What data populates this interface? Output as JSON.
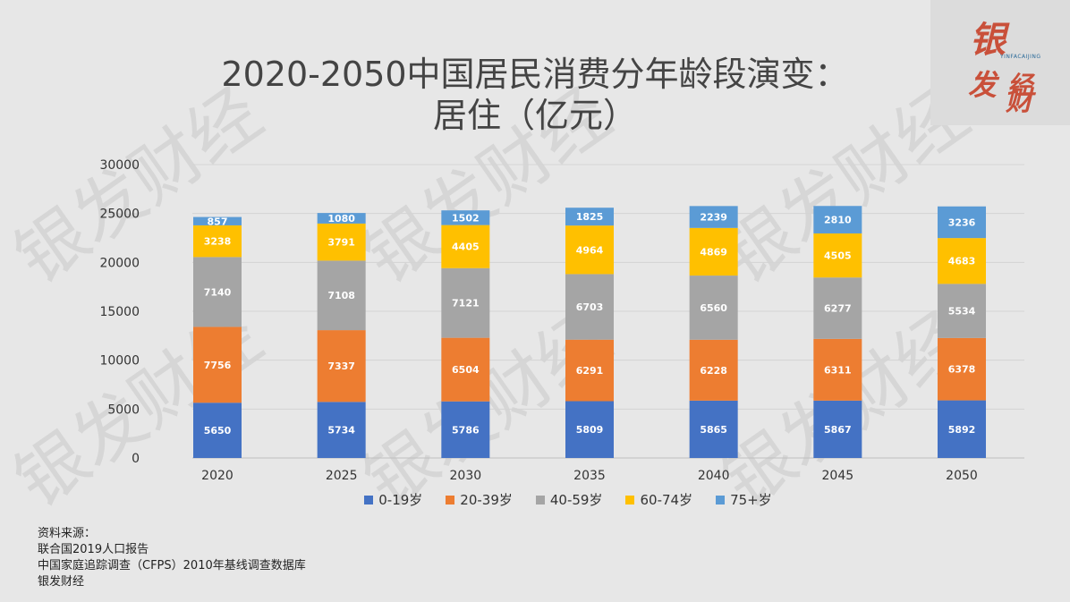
{
  "title": {
    "line1": "2020-2050中国居民消费分年龄段演变：",
    "line2": "居住（亿元）"
  },
  "logo": {
    "text": "银发财经",
    "tagline": "YINFACAIJING",
    "color": "#c9503a"
  },
  "watermark": "银发财经",
  "chart_data": {
    "type": "bar",
    "stacked": true,
    "categories": [
      "2020",
      "2025",
      "2030",
      "2035",
      "2040",
      "2045",
      "2050"
    ],
    "series": [
      {
        "name": "0-19岁",
        "color": "#4472c4",
        "values": [
          5650,
          5734,
          5786,
          5809,
          5865,
          5867,
          5892
        ]
      },
      {
        "name": "20-39岁",
        "color": "#ed7d31",
        "values": [
          7756,
          7337,
          6504,
          6291,
          6228,
          6311,
          6378
        ]
      },
      {
        "name": "40-59岁",
        "color": "#a5a5a5",
        "values": [
          7140,
          7108,
          7121,
          6703,
          6560,
          6277,
          5534
        ]
      },
      {
        "name": "60-74岁",
        "color": "#ffc000",
        "values": [
          3238,
          3791,
          4405,
          4964,
          4869,
          4505,
          4683
        ]
      },
      {
        "name": "75+岁",
        "color": "#5b9bd5",
        "values": [
          857,
          1080,
          1502,
          1825,
          2239,
          2810,
          3236
        ]
      }
    ],
    "ylim": [
      0,
      30000
    ],
    "yticks": [
      "0",
      "5000",
      "10000",
      "15000",
      "20000",
      "25000",
      "30000"
    ],
    "grid": true,
    "legend": "bottom"
  },
  "source": {
    "heading": "资料来源：",
    "lines": [
      "联合国2019人口报告",
      "中国家庭追踪调查（CFPS）2010年基线调查数据库",
      "银发财经"
    ]
  }
}
